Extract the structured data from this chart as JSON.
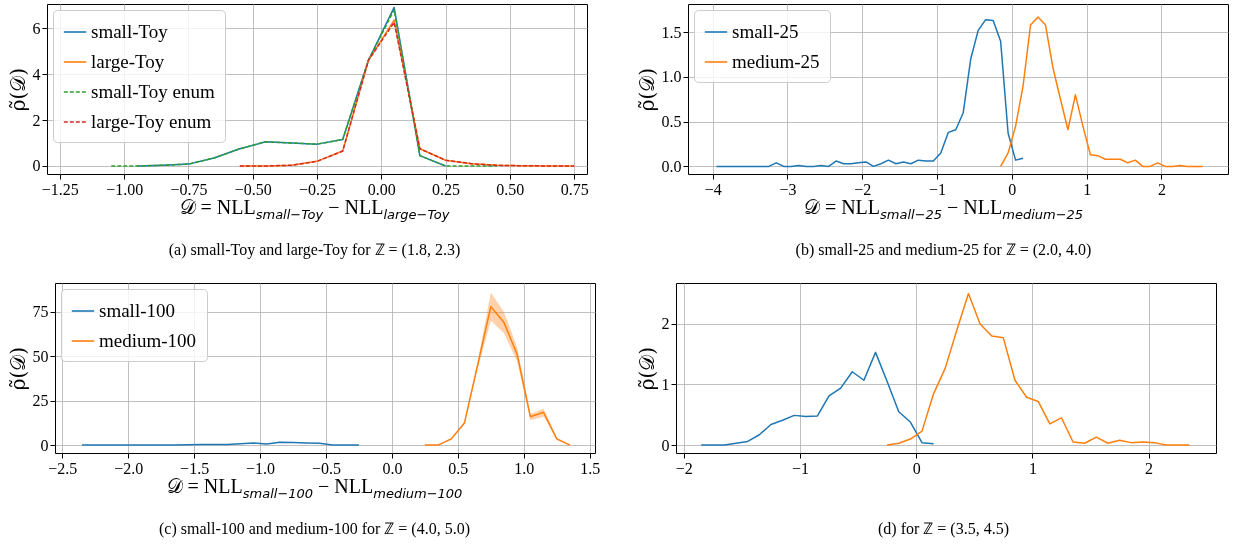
{
  "chart_data": [
    {
      "type": "line",
      "ylabel": "ρ̃(𝒟)",
      "xlabel": "𝒟 = NLL$_{small−Toy}$ − NLL$_{large−Toy}$",
      "annotations": [
        "(a) small-Toy and large-Toy for ℤ = (1.8, 2.3)"
      ],
      "grid": true,
      "legend": "top left",
      "xlim": [
        -1.3,
        0.8
      ],
      "ylim": [
        -0.35,
        7.05
      ],
      "xticks": [
        {
          "value": -1.25,
          "label": "−1.25"
        },
        {
          "value": -1,
          "label": "−1.00"
        },
        {
          "value": -0.75,
          "label": "−0.75"
        },
        {
          "value": -0.5,
          "label": "−0.50"
        },
        {
          "value": -0.25,
          "label": "−0.25"
        },
        {
          "value": 0,
          "label": "0.00"
        },
        {
          "value": 0.25,
          "label": "0.25"
        },
        {
          "value": 0.5,
          "label": "0.50"
        },
        {
          "value": 0.75,
          "label": "0.75"
        }
      ],
      "yticks": [
        0,
        2,
        4,
        6
      ],
      "series": [
        {
          "name": "small-Toy",
          "color": "#1f77b4",
          "line_style": "solid",
          "x": [
            -0.95,
            -0.85,
            -0.75,
            -0.65,
            -0.55,
            -0.45,
            -0.35,
            -0.25,
            -0.15,
            -0.05,
            0.05,
            0.15,
            0.25
          ],
          "values": [
            0,
            0.03,
            0.08,
            0.35,
            0.75,
            1.05,
            1.0,
            0.95,
            1.15,
            4.6,
            6.9,
            0.45,
            0
          ]
        },
        {
          "name": "large-Toy",
          "color": "#ff7f0e",
          "line_style": "solid",
          "x": [
            -0.55,
            -0.45,
            -0.35,
            -0.25,
            -0.15,
            -0.05,
            0.05,
            0.15,
            0.25,
            0.35,
            0.45,
            0.55,
            0.65,
            0.75
          ],
          "values": [
            0,
            0,
            0.03,
            0.2,
            0.65,
            4.6,
            6.35,
            0.75,
            0.25,
            0.1,
            0.03,
            0.01,
            0,
            0
          ]
        },
        {
          "name": "small-Toy enum",
          "color": "#2ca02c",
          "line_style": "dashed",
          "x": [
            -1.05,
            -0.95,
            -0.85,
            -0.75,
            -0.65,
            -0.55,
            -0.45,
            -0.35,
            -0.25,
            -0.15,
            -0.05,
            0.05,
            0.15,
            0.25,
            0.35,
            0.45
          ],
          "values": [
            0,
            0,
            0.03,
            0.08,
            0.35,
            0.75,
            1.05,
            1.0,
            0.95,
            1.15,
            4.6,
            6.8,
            0.45,
            0,
            0,
            0
          ]
        },
        {
          "name": "large-Toy enum",
          "color": "#d62728",
          "line_style": "dashed",
          "x": [
            -0.55,
            -0.45,
            -0.35,
            -0.25,
            -0.15,
            -0.05,
            0.05,
            0.15,
            0.25,
            0.35,
            0.45,
            0.55,
            0.65,
            0.75
          ],
          "values": [
            0,
            0,
            0.03,
            0.2,
            0.65,
            4.6,
            6.25,
            0.75,
            0.25,
            0.1,
            0.03,
            0.01,
            0,
            0
          ]
        }
      ]
    },
    {
      "type": "line",
      "ylabel": "ρ̃(𝒟)",
      "xlabel": "𝒟 = NLL$_{small−25}$ − NLL$_{medium−25}$",
      "annotations": [
        "(b) small-25 and medium-25 for ℤ = (2.0, 4.0)"
      ],
      "grid": true,
      "legend": "top left",
      "xlim": [
        -4.33,
        2.89
      ],
      "ylim": [
        -0.085,
        1.815
      ],
      "xticks": [
        {
          "value": -4,
          "label": "−4"
        },
        {
          "value": -3,
          "label": "−3"
        },
        {
          "value": -2,
          "label": "−2"
        },
        {
          "value": -1,
          "label": "−1"
        },
        0,
        1,
        2
      ],
      "yticks": [
        {
          "value": 0,
          "label": "0.0"
        },
        {
          "value": 0.5,
          "label": "0.5"
        },
        {
          "value": 1,
          "label": "1.0"
        },
        {
          "value": 1.5,
          "label": "1.5"
        }
      ],
      "series": [
        {
          "name": "small-25",
          "color": "#1f77b4",
          "line_style": "solid",
          "x": [
            -3.95,
            -3.85,
            -3.75,
            -3.65,
            -3.55,
            -3.45,
            -3.35,
            -3.25,
            -3.15,
            -3.05,
            -2.95,
            -2.85,
            -2.75,
            -2.65,
            -2.55,
            -2.45,
            -2.35,
            -2.25,
            -2.15,
            -2.05,
            -1.95,
            -1.85,
            -1.75,
            -1.65,
            -1.55,
            -1.45,
            -1.35,
            -1.25,
            -1.15,
            -1.05,
            -0.95,
            -0.85,
            -0.75,
            -0.65,
            -0.55,
            -0.45,
            -0.35,
            -0.25,
            -0.15,
            -0.05,
            0.05,
            0.15
          ],
          "values": [
            0,
            0,
            0,
            0,
            0,
            0,
            0,
            0,
            0.04,
            0,
            0,
            0.01,
            0,
            0,
            0.01,
            0,
            0.06,
            0.03,
            0.03,
            0.04,
            0.05,
            0,
            0.03,
            0.07,
            0.03,
            0.05,
            0.03,
            0.07,
            0.06,
            0.06,
            0.15,
            0.38,
            0.41,
            0.6,
            1.2,
            1.52,
            1.64,
            1.63,
            1.4,
            0.37,
            0.07,
            0.09
          ]
        },
        {
          "name": "medium-25",
          "color": "#ff7f0e",
          "line_style": "solid",
          "x": [
            -0.15,
            -0.05,
            0.05,
            0.15,
            0.25,
            0.35,
            0.45,
            0.55,
            0.65,
            0.75,
            0.85,
            0.95,
            1.05,
            1.15,
            1.25,
            1.35,
            1.45,
            1.55,
            1.65,
            1.75,
            1.85,
            1.95,
            2.05,
            2.15,
            2.25,
            2.35,
            2.45,
            2.55
          ],
          "values": [
            0,
            0.15,
            0.45,
            0.9,
            1.58,
            1.67,
            1.58,
            1.1,
            0.75,
            0.41,
            0.8,
            0.45,
            0.13,
            0.12,
            0.08,
            0.08,
            0.08,
            0.04,
            0.07,
            0,
            0,
            0.04,
            0,
            0,
            0.01,
            0,
            0,
            0
          ]
        }
      ]
    },
    {
      "type": "line",
      "ylabel": "ρ̃(𝒟)",
      "xlabel": "𝒟 = NLL$_{small−100}$ − NLL$_{medium−100}$",
      "annotations": [
        "(c) small-100 and medium-100 for ℤ = (4.0, 5.0)"
      ],
      "grid": true,
      "legend": "top left",
      "xlim": [
        -2.555,
        1.54
      ],
      "ylim": [
        -4.45,
        91.3
      ],
      "xticks": [
        {
          "value": -2.5,
          "label": "−2.5"
        },
        {
          "value": -2,
          "label": "−2.0"
        },
        {
          "value": -1.5,
          "label": "−1.5"
        },
        {
          "value": -1,
          "label": "−1.0"
        },
        {
          "value": -0.5,
          "label": "−0.5"
        },
        {
          "value": 0,
          "label": "0.0"
        },
        0.5,
        {
          "value": 1,
          "label": "1.0"
        },
        1.5
      ],
      "yticks": [
        0,
        25,
        50,
        75
      ],
      "series": [
        {
          "name": "small-100",
          "color": "#1f77b4",
          "line_style": "solid",
          "x": [
            -2.35,
            -2.25,
            -2.15,
            -2.05,
            -1.95,
            -1.85,
            -1.75,
            -1.65,
            -1.55,
            -1.45,
            -1.35,
            -1.25,
            -1.15,
            -1.05,
            -0.95,
            -0.85,
            -0.75,
            -0.65,
            -0.55,
            -0.45,
            -0.35,
            -0.25
          ],
          "values": [
            0,
            0,
            0,
            0,
            0,
            0,
            0,
            0.1,
            0.2,
            0.3,
            0.4,
            0.4,
            0.8,
            1.2,
            0.6,
            1.6,
            1.4,
            1.2,
            1.1,
            0.1,
            0.1,
            0
          ]
        },
        {
          "name": "medium-100",
          "color": "#ff7f0e",
          "line_style": "solid",
          "x": [
            0.25,
            0.35,
            0.45,
            0.55,
            0.65,
            0.75,
            0.85,
            0.95,
            1.05,
            1.15,
            1.25,
            1.35
          ],
          "values": [
            0,
            0,
            3.5,
            12.5,
            45,
            78,
            69,
            51,
            16,
            18.5,
            3.5,
            0
          ],
          "lower": [
            0,
            0,
            3,
            12,
            43,
            70,
            63,
            47,
            14,
            16,
            3,
            0
          ],
          "upper": [
            0,
            0,
            4,
            13,
            47,
            86,
            75,
            55,
            17.5,
            20.5,
            4,
            0.5
          ]
        }
      ]
    },
    {
      "type": "line",
      "ylabel": "ρ̃(𝒟)",
      "annotations": [
        "(d) for ℤ = (3.5, 4.5)"
      ],
      "grid": true,
      "xlim": [
        -2.067,
        2.58
      ],
      "ylim": [
        -0.131,
        2.675
      ],
      "xticks": [
        {
          "value": -2,
          "label": "−2"
        },
        {
          "value": -1,
          "label": "−1"
        },
        0,
        1,
        2
      ],
      "yticks": [
        0,
        1,
        2
      ],
      "series": [
        {
          "color": "#1f77b4",
          "line_style": "solid",
          "x": [
            -1.85,
            -1.75,
            -1.65,
            -1.55,
            -1.45,
            -1.35,
            -1.25,
            -1.15,
            -1.05,
            -0.95,
            -0.85,
            -0.75,
            -0.65,
            -0.55,
            -0.45,
            -0.35,
            -0.25,
            -0.15,
            -0.05,
            0.05,
            0.15
          ],
          "values": [
            0,
            0,
            0,
            0.03,
            0.06,
            0.17,
            0.34,
            0.41,
            0.49,
            0.47,
            0.48,
            0.81,
            0.94,
            1.21,
            1.07,
            1.53,
            1.05,
            0.55,
            0.38,
            0.04,
            0.02
          ]
        },
        {
          "color": "#ff7f0e",
          "line_style": "solid",
          "x": [
            -0.25,
            -0.15,
            -0.05,
            0.05,
            0.15,
            0.25,
            0.35,
            0.45,
            0.55,
            0.65,
            0.75,
            0.85,
            0.95,
            1.05,
            1.15,
            1.25,
            1.35,
            1.45,
            1.55,
            1.65,
            1.75,
            1.85,
            1.95,
            2.05,
            2.15,
            2.25,
            2.35
          ],
          "values": [
            0,
            0.03,
            0.1,
            0.23,
            0.85,
            1.27,
            1.9,
            2.5,
            2.0,
            1.8,
            1.77,
            1.07,
            0.79,
            0.72,
            0.35,
            0.45,
            0.05,
            0.03,
            0.13,
            0.03,
            0.08,
            0.04,
            0.05,
            0.04,
            0,
            0,
            0
          ]
        }
      ]
    }
  ]
}
